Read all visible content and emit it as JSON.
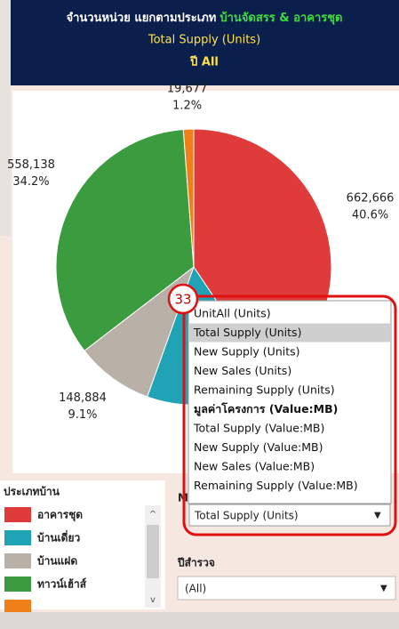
{
  "header": {
    "title_prefix": "จำนวนหน่วย แยกตามประเภท",
    "title_highlight": "บ้านจัดสรร & อาคารชุด",
    "subtitle": "Total Supply (Units)",
    "year_line": "ปี  All"
  },
  "chart_data": {
    "type": "pie",
    "categories": [
      "อาคารชุด",
      "บ้านเดี่ยว",
      "บ้านแฝด",
      "ทาวน์เฮ้าส์",
      null
    ],
    "values": [
      662666,
      242817,
      148884,
      558138,
      19677
    ],
    "value_labels": [
      "662,666",
      null,
      "148,884",
      "558,138",
      "19,677"
    ],
    "percent_labels": [
      "40.6%",
      null,
      "9.1%",
      "34.2%",
      "1.2%"
    ],
    "colors": [
      "#e03b3b",
      "#1fa3b5",
      "#b9b0a8",
      "#3a9b3f",
      "#f07f1a"
    ]
  },
  "legend": {
    "title": "ประเภทบ้าน"
  },
  "dropdown": {
    "badge": "33",
    "partial_label": "M",
    "options": [
      "UnitAll (Units)",
      "Total Supply (Units)",
      "New Supply (Units)",
      "New Sales (Units)",
      "Remaining Supply (Units)",
      "มูลค่าโครงการ (Value:MB)",
      "Total Supply (Value:MB)",
      "New Supply (Value:MB)",
      "New Sales (Value:MB)",
      "Remaining Supply (Value:MB)"
    ],
    "selected": "Total Supply (Units)"
  },
  "filter": {
    "label": "ปีสำรวจ",
    "value": "(All)"
  }
}
